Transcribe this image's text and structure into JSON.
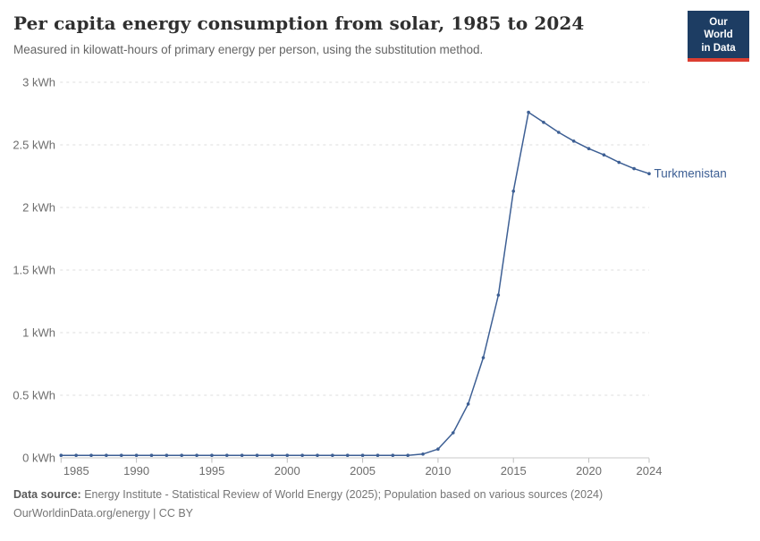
{
  "header": {
    "title": "Per capita energy consumption from solar, 1985 to 2024",
    "subtitle": "Measured in kilowatt-hours of primary energy per person, using the substitution method."
  },
  "logo": {
    "line1": "Our World",
    "line2": "in Data",
    "bg_color": "#1d3d63",
    "accent_color": "#dc3e31"
  },
  "chart_data": {
    "type": "line",
    "title": "Per capita energy consumption from solar, 1985 to 2024",
    "x": [
      1985,
      1986,
      1987,
      1988,
      1989,
      1990,
      1991,
      1992,
      1993,
      1994,
      1995,
      1996,
      1997,
      1998,
      1999,
      2000,
      2001,
      2002,
      2003,
      2004,
      2005,
      2006,
      2007,
      2008,
      2009,
      2010,
      2011,
      2012,
      2013,
      2014,
      2015,
      2016,
      2017,
      2018,
      2019,
      2020,
      2021,
      2022,
      2023,
      2024
    ],
    "series": [
      {
        "name": "Turkmenistan",
        "color": "#3d5f94",
        "values": [
          0.02,
          0.02,
          0.02,
          0.02,
          0.02,
          0.02,
          0.02,
          0.02,
          0.02,
          0.02,
          0.02,
          0.02,
          0.02,
          0.02,
          0.02,
          0.02,
          0.02,
          0.02,
          0.02,
          0.02,
          0.02,
          0.02,
          0.02,
          0.02,
          0.03,
          0.07,
          0.2,
          0.43,
          0.8,
          1.3,
          2.13,
          2.76,
          2.68,
          2.6,
          2.53,
          2.47,
          2.42,
          2.36,
          2.31,
          2.27
        ]
      }
    ],
    "xlabel": "",
    "ylabel": "",
    "xlim": [
      1985,
      2024
    ],
    "ylim": [
      0,
      3
    ],
    "yticks": [
      0,
      0.5,
      1,
      1.5,
      2,
      2.5,
      3
    ],
    "ytick_suffix": " kWh",
    "xticks": [
      1985,
      1990,
      1995,
      2000,
      2005,
      2010,
      2015,
      2020,
      2024
    ],
    "grid": "dashed-horizontal",
    "legend_position": "end-of-line-label",
    "colors": {
      "grid": "#dddddd",
      "axis": "#c9c9c9",
      "tick": "#bdbdbd",
      "tick_label": "#6d6d6d"
    }
  },
  "footer": {
    "source_label": "Data source:",
    "source_text": " Energy Institute - Statistical Review of World Energy (2025); Population based on various sources (2024)",
    "note_text": "OurWorldinData.org/energy | CC BY"
  }
}
